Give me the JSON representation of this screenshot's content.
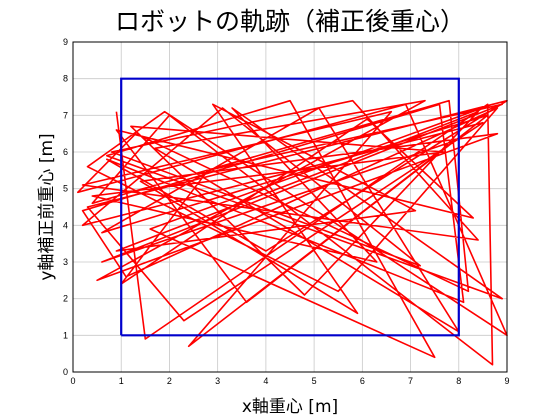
{
  "chart_data": {
    "type": "line",
    "title": "ロボットの軌跡（補正後重心）",
    "xlabel": "x軸重心 [m]",
    "ylabel": "y軸補正前重心 [m]",
    "xlim": [
      0,
      9
    ],
    "ylim": [
      0,
      9
    ],
    "xticks": [
      "0",
      "1",
      "2",
      "3",
      "4",
      "5",
      "6",
      "7",
      "8",
      "9"
    ],
    "yticks": [
      "0",
      "1",
      "2",
      "3",
      "4",
      "5",
      "6",
      "7",
      "8",
      "9"
    ],
    "grid": true,
    "colors": {
      "trajectory": "#ff0000",
      "boundary": "#0000cc",
      "grid": "#c8c8c8"
    },
    "boundary": {
      "x": [
        1,
        8,
        8,
        1,
        1
      ],
      "y": [
        1,
        1,
        8,
        8,
        1
      ]
    },
    "trajectory": {
      "x": [
        0.9,
        1.5,
        8.6,
        8.7,
        2.0,
        0.4,
        7.8,
        8.2,
        1.3,
        0.1,
        6.9,
        9.0,
        1.9,
        0.3,
        5.5,
        8.8,
        1.1,
        0.2,
        7.6,
        8.1,
        0.7,
        4.0,
        9.0,
        0.3,
        2.3,
        8.5,
        0.2,
        3.1,
        7.2,
        0.8,
        5.8,
        8.4,
        0.2,
        6.6,
        2.4,
        7.9,
        0.6,
        8.9,
        2.8,
        1.0,
        6.1,
        8.3,
        0.9,
        3.6,
        8.6,
        0.6,
        5.1,
        8.0,
        1.7,
        7.3,
        0.5,
        8.8,
        1.4,
        5.9,
        2.9,
        7.1,
        0.9,
        8.4,
        4.8,
        1.2,
        7.7,
        0.4,
        6.3,
        3.3,
        8.9,
        0.7,
        4.5,
        7.5,
        1.6,
        8.7
      ],
      "y": [
        7.1,
        0.9,
        7.3,
        0.2,
        7.0,
        4.6,
        7.4,
        2.2,
        6.5,
        4.9,
        7.3,
        1.0,
        7.1,
        5.6,
        2.2,
        7.2,
        2.6,
        4.4,
        7.3,
        1.9,
        5.8,
        3.3,
        7.4,
        4.5,
        1.4,
        6.8,
        4.0,
        7.2,
        2.9,
        6.0,
        7.4,
        3.6,
        5.1,
        7.1,
        0.7,
        6.3,
        3.0,
        7.3,
        5.5,
        2.4,
        6.9,
        4.2,
        6.6,
        1.9,
        7.0,
        3.8,
        7.2,
        1.1,
        6.1,
        7.4,
        2.5,
        6.5,
        5.2,
        1.6,
        7.3,
        4.4,
        3.3,
        7.1,
        2.1,
        6.7,
        6.0,
        4.8,
        3.0,
        7.2,
        2.0,
        5.9,
        7.4,
        0.4,
        3.9,
        7.3
      ]
    }
  }
}
